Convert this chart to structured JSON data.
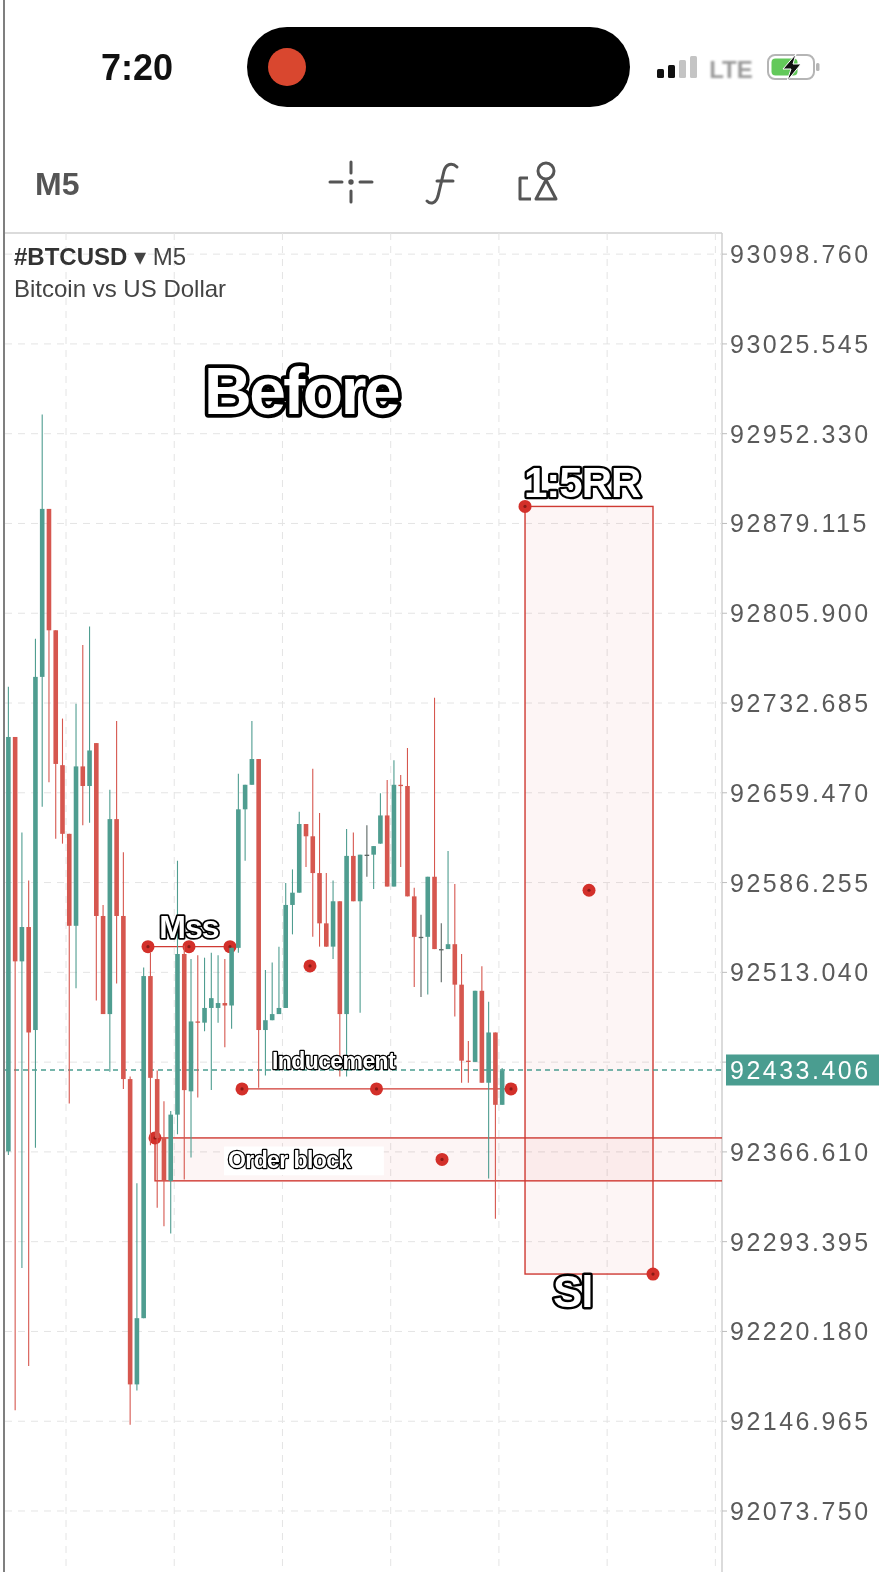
{
  "chart_data": {
    "type": "candlestick",
    "title": "Before",
    "subtitle": "Bitcoin vs US Dollar",
    "annotations": [
      "7:20",
      "LTE",
      "M5",
      "#BTCUSD ▾ M5",
      "Sl"
    ],
    "categories": [
      null,
      null,
      null,
      null,
      null,
      null,
      null,
      null,
      null,
      null,
      null,
      null,
      null,
      null,
      null,
      null,
      null,
      null,
      null,
      null,
      null,
      null,
      null,
      null,
      null,
      null,
      null,
      null,
      null,
      null,
      null,
      null,
      null,
      null,
      null,
      null,
      null,
      null,
      null,
      null,
      null,
      null,
      null,
      null,
      null,
      null,
      null,
      null,
      null,
      null,
      null,
      null,
      null,
      null,
      null,
      null,
      null,
      null,
      null,
      null,
      null,
      null,
      null,
      null,
      null,
      null,
      null,
      null,
      null,
      null,
      null,
      null,
      null,
      null,
      null,
      null,
      null,
      null,
      null,
      null,
      null,
      null,
      null,
      null,
      null,
      null,
      null,
      null,
      null,
      null,
      null,
      null,
      null,
      null,
      null,
      null,
      null,
      null,
      null,
      null,
      null,
      null,
      null,
      null,
      null,
      null
    ],
    "ohlc": [
      [
        92367,
        92746,
        92364,
        92705
      ],
      [
        92705,
        92705,
        92156,
        92522
      ],
      [
        92522,
        92627,
        92272,
        92550
      ],
      [
        92550,
        92588,
        92192,
        92464
      ],
      [
        92466,
        92785,
        92370,
        92754
      ],
      [
        92754,
        92968,
        92648,
        92891
      ],
      [
        92891,
        92891,
        92668,
        92792
      ],
      [
        92792,
        92792,
        92622,
        92683
      ],
      [
        92682,
        92720,
        92618,
        92626
      ],
      [
        92626,
        92626,
        92406,
        92551
      ],
      [
        92551,
        92732,
        92500,
        92681
      ],
      [
        92681,
        92780,
        92633,
        92665
      ],
      [
        92665,
        92795,
        92635,
        92694
      ],
      [
        92700,
        92700,
        92490,
        92559
      ],
      [
        92559,
        92568,
        92479,
        92479
      ],
      [
        92479,
        92662,
        92432,
        92638
      ],
      [
        92638,
        92718,
        92504,
        92559
      ],
      [
        92559,
        92611,
        92418,
        92426
      ],
      [
        92426,
        92428,
        92144,
        92177
      ],
      [
        92177,
        92341,
        92172,
        92231
      ],
      [
        92231,
        92517,
        92231,
        92510
      ],
      [
        92510,
        92529,
        92372,
        92427
      ],
      [
        92426,
        92433,
        92321,
        92378
      ],
      [
        92378,
        92408,
        92306,
        92343
      ],
      [
        92343,
        92400,
        92300,
        92397
      ],
      [
        92397,
        92604,
        92381,
        92528
      ],
      [
        92528,
        92535,
        92344,
        92417
      ],
      [
        92416,
        92524,
        92362,
        92473
      ],
      [
        92473,
        92527,
        92411,
        92472
      ],
      [
        92472,
        92525,
        92465,
        92484
      ],
      [
        92484,
        92529,
        92417,
        92492
      ],
      [
        92484,
        92527,
        92472,
        92488
      ],
      [
        92488,
        92524,
        92452,
        92486
      ],
      [
        92486,
        92533,
        92467,
        92533
      ],
      [
        92533,
        92675,
        92529,
        92646
      ],
      [
        92646,
        92666,
        92604,
        92666
      ],
      [
        92666,
        92718,
        92666,
        92687
      ],
      [
        92687,
        92687,
        92419,
        92466
      ],
      [
        92466,
        92515,
        92429,
        92474
      ],
      [
        92474,
        92521,
        92474,
        92479
      ],
      [
        92479,
        92534,
        92479,
        92484
      ],
      [
        92484,
        92586,
        92484,
        92568
      ],
      [
        92568,
        92597,
        92544,
        92578
      ],
      [
        92578,
        92644,
        92578,
        92634
      ],
      [
        92634,
        92634,
        92599,
        92624
      ],
      [
        92624,
        92679,
        92542,
        92594
      ],
      [
        92594,
        92643,
        92534,
        92553
      ],
      [
        92553,
        92594,
        92534,
        92534
      ],
      [
        92534,
        92588,
        92524,
        92571
      ],
      [
        92571,
        92571,
        92428,
        92479
      ],
      [
        92479,
        92630,
        92428,
        92608
      ],
      [
        92608,
        92627,
        92571,
        92571
      ],
      [
        92571,
        92609,
        92480,
        92609
      ],
      [
        92609,
        92633,
        92591,
        92609
      ],
      [
        92609,
        92616,
        92581,
        92616
      ],
      [
        92618,
        92659,
        92618,
        92641
      ],
      [
        92641,
        92670,
        92583,
        92583
      ],
      [
        92583,
        92686,
        92583,
        92666
      ],
      [
        92666,
        92674,
        92599,
        92665
      ],
      [
        92665,
        92696,
        92575,
        92575
      ],
      [
        92575,
        92582,
        92501,
        92542
      ],
      [
        92542,
        92560,
        92493,
        92542
      ],
      [
        92542,
        92591,
        92495,
        92591
      ],
      [
        92591,
        92737,
        92532,
        92532
      ],
      [
        92532,
        92553,
        92505,
        92532
      ],
      [
        92532,
        92612,
        92532,
        92536
      ],
      [
        92536,
        92585,
        92477,
        92503
      ],
      [
        92503,
        92528,
        92423,
        92441
      ],
      [
        92441,
        92457,
        92423,
        92440
      ],
      [
        92440,
        92498,
        92440,
        92498
      ],
      [
        92498,
        92518,
        92423,
        92423
      ],
      [
        92423,
        92489,
        92345,
        92464
      ],
      [
        92464,
        92464,
        92312,
        92405
      ],
      [
        92405,
        92435,
        92405,
        92433
      ],
      null,
      null,
      null,
      null,
      null,
      null,
      null,
      null,
      null,
      null,
      null,
      null,
      null,
      null,
      null,
      null,
      null,
      null,
      null,
      null,
      null,
      null,
      null,
      null,
      null,
      null,
      null,
      null,
      null,
      null,
      null,
      null
    ],
    "colors": [
      "#4f9d90",
      "#d6574f",
      "#4f9d90",
      "#d6574f",
      "#4f9d90",
      "#4f9d90",
      "#d6574f",
      "#d6574f",
      "#d6574f",
      "#d6574f",
      "#4f9d90",
      "#d6574f",
      "#4f9d90",
      "#d6574f",
      "#d6574f",
      "#4f9d90",
      "#d6574f",
      "#d6574f",
      "#d6574f",
      "#4f9d90",
      "#4f9d90",
      "#d6574f",
      "#d6574f",
      "#d6574f",
      "#4f9d90",
      "#4f9d90",
      "#d6574f",
      "#4f9d90",
      "#d6574f",
      "#4f9d90",
      "#4f9d90",
      "#4f9d90",
      "#d6574f",
      "#4f9d90",
      "#4f9d90",
      "#4f9d90",
      "#4f9d90",
      "#d6574f",
      "#4f9d90",
      "#4f9d90",
      "#4f9d90",
      "#4f9d90",
      "#4f9d90",
      "#4f9d90",
      "#d6574f",
      "#d6574f",
      "#d6574f",
      "#d6574f",
      "#4f9d90",
      "#d6574f",
      "#4f9d90",
      "#d6574f",
      "#4f9d90",
      "#5b6664",
      "#4f9d90",
      "#4f9d90",
      "#d6574f",
      "#4f9d90",
      "#d6574f",
      "#d6574f",
      "#d6574f",
      "#5b6664",
      "#4f9d90",
      "#d6574f",
      "#5b6664",
      "#4f9d90",
      "#d6574f",
      "#d6574f",
      "#d6574f",
      "#4f9d90",
      "#d6574f",
      "#4f9d90",
      "#d6574f",
      "#4f9d90",
      null,
      null,
      null,
      null,
      null,
      null,
      null,
      null,
      null,
      null,
      null,
      null,
      null,
      null,
      null,
      null,
      null,
      null,
      null,
      null,
      null,
      null,
      null,
      null,
      null,
      null,
      null,
      null,
      null,
      null,
      null,
      null
    ],
    "ylim": [
      92024,
      93116
    ],
    "yticks": [
      {
        "value": 93098.76,
        "label": "93098.760"
      },
      {
        "value": 93025.545,
        "label": "93025.545"
      },
      {
        "value": 92952.33,
        "label": "92952.330"
      },
      {
        "value": 92879.115,
        "label": "92879.115"
      },
      {
        "value": 92805.9,
        "label": "92805.900"
      },
      {
        "value": 92732.685,
        "label": "92732.685"
      },
      {
        "value": 92659.47,
        "label": "92659.470"
      },
      {
        "value": 92586.255,
        "label": "92586.255"
      },
      {
        "value": 92513.04,
        "label": "92513.040"
      },
      {
        "value": 92439.825,
        "label": null
      },
      {
        "value": 92366.61,
        "label": "92366.610"
      },
      {
        "value": 92293.395,
        "label": "92293.395"
      },
      {
        "value": 92220.18,
        "label": "92220.180"
      },
      {
        "value": 92146.965,
        "label": "92146.965"
      },
      {
        "value": 92073.75,
        "label": "92073.750"
      }
    ],
    "grid": true,
    "tick_labels": "y",
    "ref_lines": [
      {
        "axis": "y",
        "value": 92534,
        "label": "Mss",
        "color": "#cf3a33"
      },
      {
        "axis": "y",
        "value": 92418,
        "label": "Inducement",
        "color": "#cf3a33"
      },
      {
        "axis": "y",
        "value": 92433.406,
        "label": "92433.406",
        "color": "#4a9d90",
        "line_style": "dashed"
      }
    ],
    "bands": [
      {
        "axis": "y",
        "from": 92343,
        "to": 92378,
        "label": "Order block",
        "color": "#cf3a33"
      },
      {
        "axis": "y",
        "from": 92267,
        "to": 92893,
        "label": "1:5RR",
        "color": "#cf3a33"
      }
    ]
  }
}
